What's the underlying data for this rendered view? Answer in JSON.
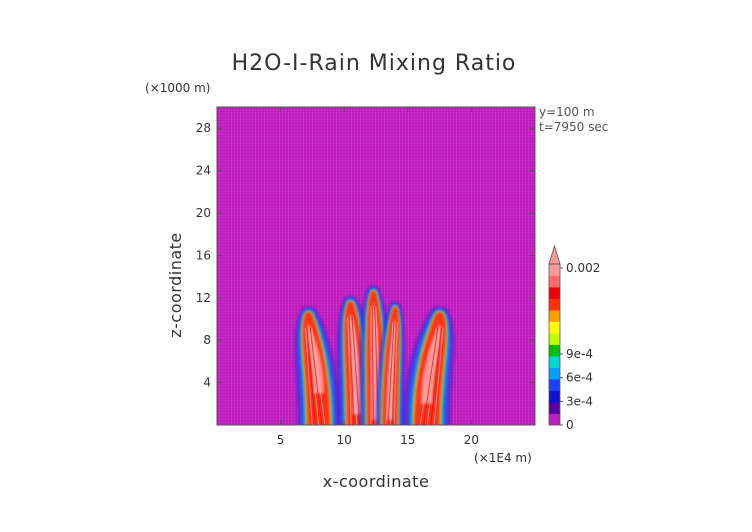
{
  "chart_data": {
    "type": "heatmap",
    "title": "H2O-I-Rain Mixing Ratio",
    "x_unit": "(×1E4 m)",
    "y_unit": "(×1000 m)",
    "xlabel": "x-coordinate",
    "ylabel": "z-coordinate",
    "xlim": [
      0,
      25
    ],
    "ylim": [
      0,
      30
    ],
    "x_ticks": [
      5,
      10,
      15,
      20
    ],
    "y_ticks": [
      4,
      8,
      12,
      16,
      20,
      24,
      28
    ],
    "annotations": [
      "y=100 m",
      "t=7950 sec"
    ],
    "colorbar": {
      "labels": [
        {
          "value": 0,
          "text": "0"
        },
        {
          "value": 0.0003,
          "text": "3e-4"
        },
        {
          "value": 0.0006,
          "text": "6e-4"
        },
        {
          "value": 0.0009,
          "text": "9e-4"
        },
        {
          "value": 0.002,
          "text": "0.002"
        }
      ],
      "colors": [
        "#c020c0",
        "#5a00a0",
        "#1010d0",
        "#2040ff",
        "#00a0ff",
        "#00d8d8",
        "#00c000",
        "#c0ff00",
        "#ffff00",
        "#ffa000",
        "#ff3000",
        "#ee0000",
        "#ff6a6a",
        "#ff9a9a"
      ],
      "extend": "max"
    },
    "cloud_plumes": [
      {
        "x_top": 7.2,
        "z_top": 10.5,
        "x_base": 8.0,
        "half_width": 0.9,
        "core_from_z": 3
      },
      {
        "x_top": 10.5,
        "z_top": 11.5,
        "x_base": 11.0,
        "half_width": 0.8,
        "core_from_z": 1
      },
      {
        "x_top": 12.3,
        "z_top": 12.5,
        "x_base": 12.5,
        "half_width": 0.7,
        "core_from_z": 0.5
      },
      {
        "x_top": 14.0,
        "z_top": 11.0,
        "x_base": 13.6,
        "half_width": 0.6,
        "core_from_z": 0.5
      },
      {
        "x_top": 17.5,
        "z_top": 10.5,
        "x_base": 16.5,
        "half_width": 1.0,
        "core_from_z": 2
      }
    ]
  }
}
